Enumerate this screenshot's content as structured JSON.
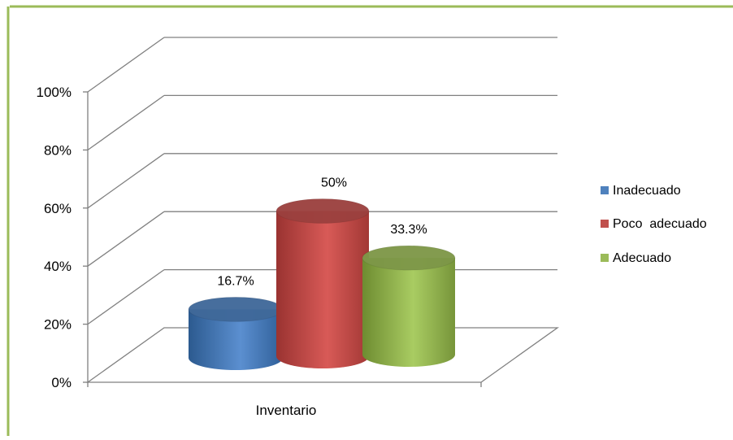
{
  "colors": {
    "border": "#9bbb59",
    "grid": "#808080",
    "text": "#000000"
  },
  "chart_data": {
    "type": "bar",
    "style": "3d-cylinder",
    "categories": [
      "Inventario"
    ],
    "series": [
      {
        "name": "Inadecuado",
        "values": [
          16.7
        ],
        "label": "16.7%",
        "color": "#4f81bd"
      },
      {
        "name": "Poco  adecuado",
        "values": [
          50
        ],
        "label": "50%",
        "color": "#c0504d"
      },
      {
        "name": "Adecuado",
        "values": [
          33.3
        ],
        "label": "33.3%",
        "color": "#9bbb59"
      }
    ],
    "y_ticks": [
      "0%",
      "20%",
      "40%",
      "60%",
      "80%",
      "100%"
    ],
    "ylim": [
      0,
      100
    ],
    "grid": true,
    "legend": "right"
  }
}
